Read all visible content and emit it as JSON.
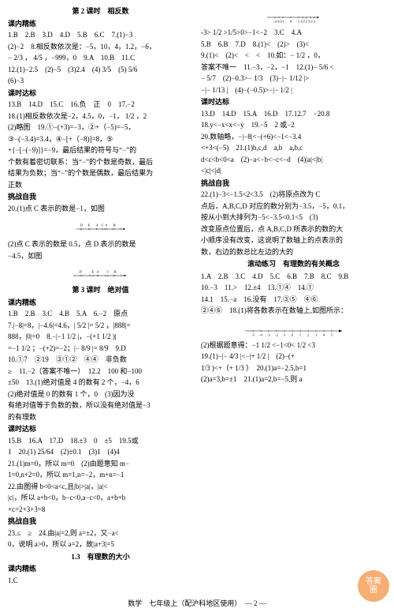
{
  "left": {
    "title1": "第 2 课时　相反数",
    "sec_knlx1": "课内精练",
    "l1": "1.B　2.B　3.D　4.D　5.B　6.C　7.(1)−3",
    "l2": "(2)−2　8.相反数依次是：−5，10，4，1.2，−6，",
    "l3": "− 2/3 ， 4/5 ，−999，0　9.A　10.B　11.C",
    "l4": "12.(1)−2.5　(2)−5　(3)2.4　(4) 3/5　(5) 5/6",
    "l5": "(6)−3",
    "sec_ksdb1": "课时达标",
    "l6": "13.B　14.D　15.C　16.负　正　0　17.−2",
    "l7": "18.(1)相反数依次是−2，4.5，0，−1， 1/2 ，2",
    "l8": "(2)略图　19.①−(+3)=−3，②+（−5)=−5，",
    "l9": "③−(−3.4)=3.4，④−[+（−8)]=8，⑤",
    "l10": "+{−[−(−9)]}=−9，最后结果的符号与“−”的",
    "l11": "个数有着密切联系：当“−”的个数是奇数，最后",
    "l12": "结果为负数；当“−”的个数是偶数，最后结果为",
    "l13": "正数",
    "sec_tzzw1": "挑战自我",
    "l14": "20.(1)点 C 表示的数是−1，如图",
    "l15": "(2)点 C 表示的数是 0.5，点 D 表示的数是",
    "l16": "−4.5，如图",
    "title2": "第 3 课时　绝对值",
    "sec_knlx2": "课内精练",
    "l17": "1.B　2.B　3.C　4.B　5.A　6.−2　原点",
    "l18": "7.|−8|=8，|−4.6|=4.6，| 5/2 |= 5/2 ，|888|=",
    "l19": "888，|0|=0　8.−|−1 1/2 |，−(+1 1/2 )|",
    "l20": "=−1 1/2 ；−(+2)=−2；|− 8/9 |= 8/9　9.D",
    "l21": "10.①7　②19　③①②　④④　非负数",
    "l22": "≥　11.−2（答案不唯一）　12.2　100 和−100",
    "l23": "±50　13.(1)绝对值是 4 的数有 2 个，−4，6",
    "l24": "(2)绝对值是 0 的数有 1 个，0　(3)因为没",
    "l25": "有绝对值等于负数的数，所以没有绝对值是−3",
    "l26": "的有理数",
    "sec_ksdb2": "课时达标",
    "l27": "15.B　16.A　17.D　18.±3　0　±5　19.5或",
    "l28": "1　20.(1) 25/64　(2)±0.1　(3)1　(4)4",
    "l29": "21.(1)m=0，所以 m=0　(2)由题意知 m−",
    "l30": "1=0,n+2=0，所以 m=1,n=−2，m+n=−1",
    "l31": "22.由图得 b<0<a<c,且|b|>|a|，|a|<",
    "l32": "|c|，所以 a+b<0，b−c<0,a−c<0，a+b+b"
  },
  "right": {
    "r1": "+c=2+3+3=8",
    "sec_tzzw_r": "挑战自我",
    "r2": "23.≤　≥　24.由|a|=2,则 a=±2，又−a<",
    "r3": "0，说明 a>0，所以 a=2，故|a+3|=5",
    "title3": "1.3　有理数的大小",
    "sec_knlx3": "课内精练",
    "r4": "1.C",
    "r5": "-3> 1/2 >1/5>0>−1<−2　3.C　4.A",
    "r6": "5.B　6.B　7.D　8.(1)<　(2)>　(3)<",
    "r7": "9.(1)<　(2)<　<　<　10.如：− 1/2 ，0，",
    "r8": "答案不唯一　11.−3，−2，−1　12.(1)− 5/6 <",
    "r9": "− 5/7　(2)−0.3>− 1/3　(3)−|− 1/12 |>",
    "r10": "−|− 1/13 |　(4)−(−0.5)>−|− 1/2 |",
    "sec_ksdb3": "课时达标",
    "r11": "13.D　14.D　15.A　16.D　17.12.7　−20.8",
    "r12": "18.y<−x<x<−y　19.−5　2 或−2",
    "r13": "20.数轴略，−|−8|<−(+6)<−1<−3.4",
    "r14": "<+3<(−5)　21.(1)b,c,d　a,b　a,b,c",
    "r15": "d<c<b<0<a　(2)−a<−b<−c<−d　(4)|a|<|b|",
    "r16": "<|c|<|d|",
    "sec_tzzw3": "挑战自我",
    "r17": "22.(1)−3<−1.5<2<3.5　(2)将原点改为 C",
    "r18": "点后，A,B,C,D 对应的数分别为−3.5，−5，0.1，",
    "r19": "按从小到大排列为−5<−3.5<0.1<5　(3)",
    "r20": "改变原点位置后，点 A,B,C,D 所表示的数的大",
    "r21": "小顺序没有改变，这说明了数轴上的点表示的",
    "r22": "数，右边的数总比左边的大的",
    "title4": "滚动练习　有理数的有关概念",
    "r23": "1.A　2.B　3.C　4.D　5.C　6.B　7.B　8.C　9.B",
    "r24": "10.−3　11.>　12.±4　13.①④　14.①",
    "r25": "14.1　15.−a　16.没有　17.③⑤　④⑥",
    "r26": "②④⑥　18.(1)将各数表示在数轴上,如图所示：",
    "r27": "(2)根据题意得：−1 1/2 <−1<0< 1/2 <3",
    "r28": "19.(1)−|− 4/3 |<−|+ 1/2 |　(2)−(+",
    "r29": "1/3 )<+（+ 1/3 ）　20.(1)a=−2.5,b=1",
    "r30": "(2)a=3,b=±1　21.(1)a=2,b=−5,则 a"
  },
  "footer": "数学　七年级上（配沪科地区使用）　— 2 —",
  "numline1": {
    "labels": [
      "D",
      "E",
      "A",
      "C",
      "0",
      "B"
    ],
    "x": [
      -3,
      -2,
      -1,
      -0.3,
      0.2,
      1.2
    ],
    "xmin": -3.5,
    "xmax": 2.5,
    "tick": [
      -3,
      -2,
      -1,
      0,
      1,
      2,
      3
    ]
  },
  "numline2": {
    "labels": [
      "D",
      "E",
      "A",
      "C",
      "B"
    ],
    "x": [
      -3.2,
      -1.6,
      -1,
      0.3,
      1.2
    ],
    "xmin": -4,
    "xmax": 2.5
  },
  "numline3": {
    "xmin": -3,
    "xmax": 3.5,
    "tick": [
      -2,
      "-3/2",
      -1,
      0,
      1,
      "3/2",
      2,
      "5/2",
      3
    ],
    "tickx": [
      -2,
      -1.5,
      -1,
      0,
      1,
      1.5,
      2,
      2.5,
      3
    ]
  },
  "numline4": {
    "xmin": -6,
    "xmax": 6,
    "tick": [
      -5,
      -4,
      -3,
      -2,
      -1,
      0,
      1,
      2,
      3,
      4,
      5
    ]
  },
  "colors": {
    "ink": "#000000",
    "bg": "#ffffff",
    "wm": "#f5a15a"
  }
}
